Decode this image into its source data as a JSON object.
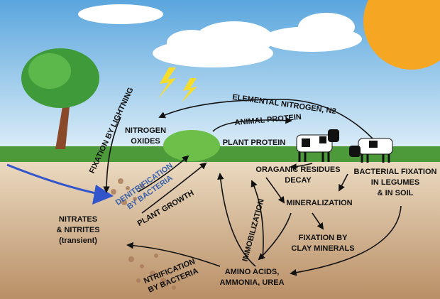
{
  "labels": {
    "elemental_nitrogen": [
      "ELEMENTAL NITROGEN, N2"
    ],
    "fixation_lightning": [
      "FIXATION BY LIGHTNING"
    ],
    "nitrogen_oxides": [
      "NITROGEN",
      "OXIDES"
    ],
    "animal_protein": [
      "ANIMAL PROTEIN"
    ],
    "plant_protein": [
      "PLANT PROTEIN"
    ],
    "denitrification": [
      "DENITRIFICATION",
      "BY BACTERIA"
    ],
    "plant_growth": [
      "PLANT GROWTH"
    ],
    "organic_residues": [
      "ORAGANIC RESIDUES",
      "DECAY"
    ],
    "bacterial_fixation": [
      "BACTERIAL FIXATION",
      "IN LEGUMES",
      "& IN SOIL"
    ],
    "mineralization": [
      "MINERALIZATION"
    ],
    "immobilization": [
      "IMMOBILIZATION"
    ],
    "clay_fixation": [
      "FIXATION BY",
      "CLAY MINERALS"
    ],
    "nitrates": [
      "NITRATES",
      "& NITRITES",
      "(transient)"
    ],
    "nitrification": [
      "NTRIFICATION",
      "BY BACTERIA"
    ],
    "amino_acids": [
      "AMINO ACIDS,",
      "AMMONIA, UREA"
    ]
  }
}
